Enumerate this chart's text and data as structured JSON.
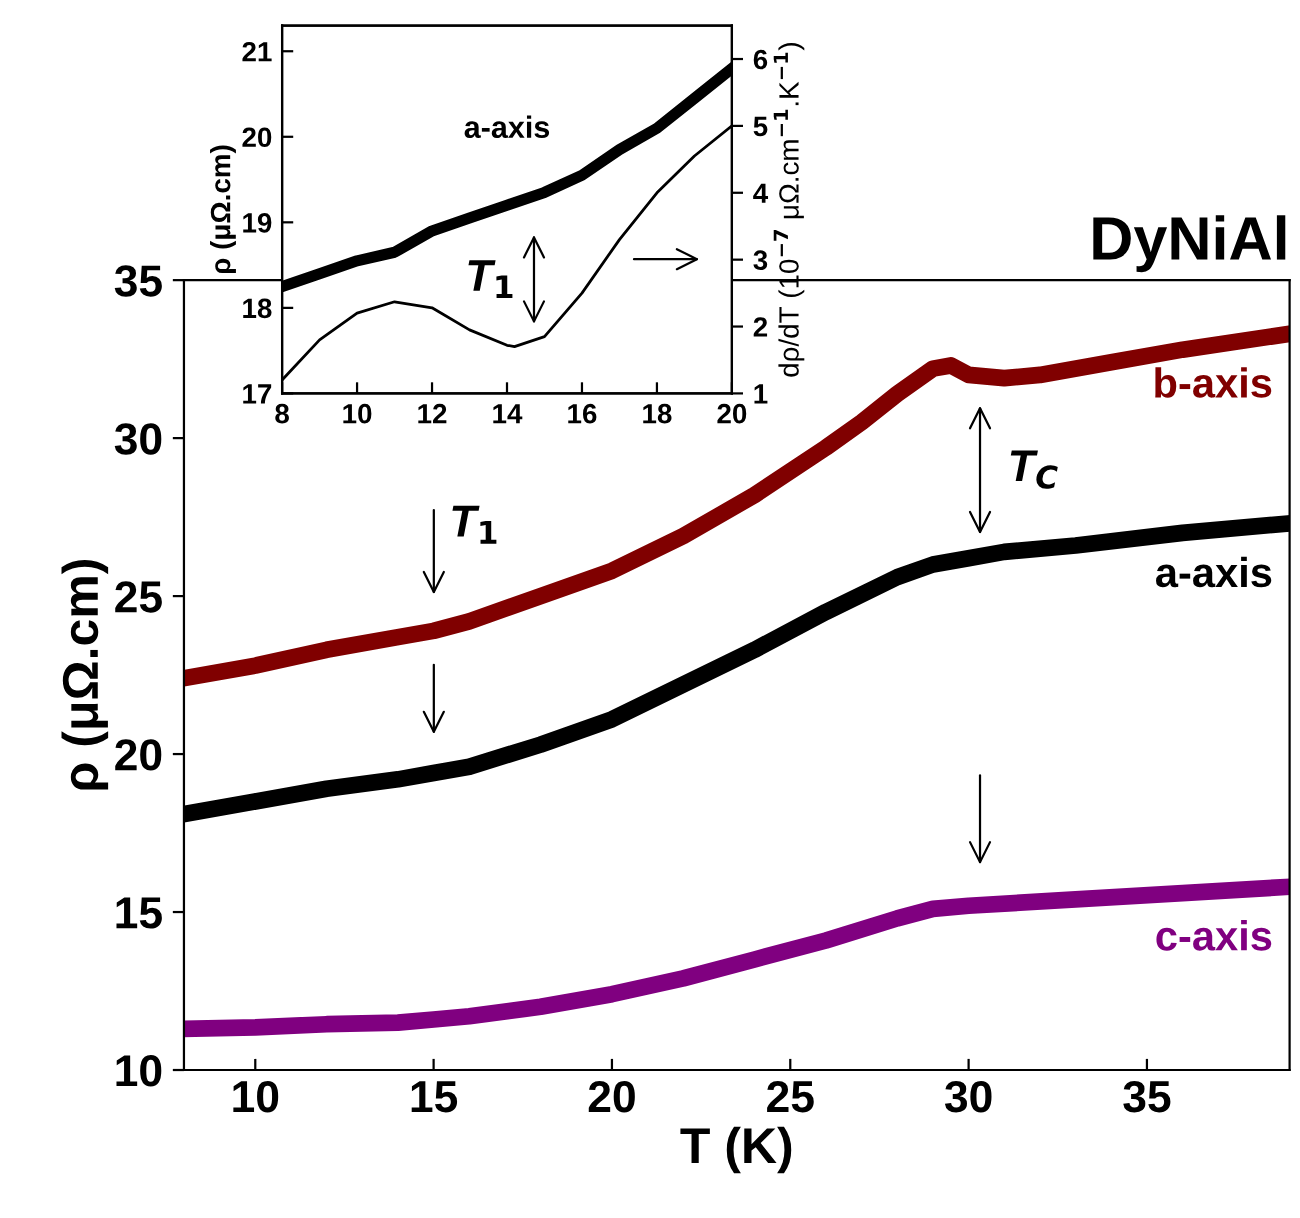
{
  "chart_data": [
    {
      "type": "line",
      "title": "DyNiAl",
      "xlabel": "T (K)",
      "ylabel": "ρ (μΩ.cm)",
      "xlim": [
        8,
        39
      ],
      "xticks": [
        10,
        15,
        20,
        25,
        30,
        35
      ],
      "ylim": [
        10,
        35
      ],
      "yticks": [
        10,
        15,
        20,
        25,
        30,
        35
      ],
      "grid": false,
      "legend": false,
      "marker": "none",
      "line_style": "solid",
      "series": [
        {
          "name": "b-axis",
          "color": "#800000",
          "x": [
            8,
            10,
            12,
            14,
            15,
            16,
            18,
            20,
            22,
            24,
            26,
            27,
            28,
            29,
            29.5,
            30,
            31,
            32,
            34,
            36,
            39
          ],
          "values": [
            22.4,
            22.8,
            23.3,
            23.7,
            23.9,
            24.2,
            25.0,
            25.8,
            26.9,
            28.2,
            29.7,
            30.5,
            31.4,
            32.2,
            32.3,
            32.0,
            31.9,
            32.0,
            32.4,
            32.8,
            33.3
          ]
        },
        {
          "name": "a-axis",
          "color": "#000000",
          "x": [
            8,
            10,
            12,
            14,
            15,
            16,
            18,
            20,
            22,
            24,
            26,
            28,
            29,
            30,
            31,
            33,
            36,
            39
          ],
          "values": [
            18.1,
            18.5,
            18.9,
            19.2,
            19.4,
            19.6,
            20.3,
            21.1,
            22.2,
            23.3,
            24.5,
            25.6,
            26.0,
            26.2,
            26.4,
            26.6,
            27.0,
            27.3
          ]
        },
        {
          "name": "c-axis",
          "color": "#800080",
          "x": [
            8,
            10,
            12,
            14,
            15,
            16,
            18,
            20,
            22,
            24,
            26,
            28,
            29,
            30,
            33,
            36,
            39
          ],
          "values": [
            11.3,
            11.35,
            11.45,
            11.5,
            11.6,
            11.7,
            12.0,
            12.4,
            12.9,
            13.5,
            14.1,
            14.8,
            15.1,
            15.2,
            15.4,
            15.6,
            15.8
          ]
        }
      ],
      "annotations": [
        "T$_{1}$",
        "T$_{C}$"
      ]
    },
    {
      "type": "line",
      "ylabel": "ρ (μΩ.cm)",
      "y2label": "dρ/dT (10$^{−7}$ μΩ.cm$^{−1}$.K$^{−1}$)",
      "xlim": [
        8,
        20
      ],
      "xticks": [
        8,
        10,
        12,
        14,
        16,
        18,
        20
      ],
      "ylim": [
        17,
        21.3
      ],
      "yticks": [
        17,
        18,
        19,
        20,
        21
      ],
      "y2lim": [
        1,
        6.5
      ],
      "y2ticks": [
        1,
        2,
        3,
        4,
        5,
        6
      ],
      "grid": false,
      "legend": false,
      "marker": "none",
      "line_style": "solid",
      "series": [
        {
          "name": "a-axis",
          "color": "#000000",
          "x": [
            8,
            9,
            10,
            11,
            12,
            13,
            14,
            15,
            16,
            17,
            18,
            19,
            20
          ],
          "values": [
            18.25,
            18.4,
            18.55,
            18.65,
            18.9,
            19.05,
            19.2,
            19.35,
            19.55,
            19.85,
            20.1,
            20.45,
            20.8
          ]
        },
        {
          "color": "#000000",
          "axis": "y2",
          "x": [
            8,
            9,
            10,
            11,
            12,
            13,
            14,
            14.2,
            15,
            16,
            17,
            18,
            19,
            20
          ],
          "values": [
            1.2,
            1.8,
            2.2,
            2.37,
            2.28,
            1.95,
            1.72,
            1.7,
            1.85,
            2.5,
            3.3,
            4.0,
            4.55,
            5.0
          ]
        }
      ],
      "annotations": [
        "T$_{1}$"
      ]
    }
  ]
}
